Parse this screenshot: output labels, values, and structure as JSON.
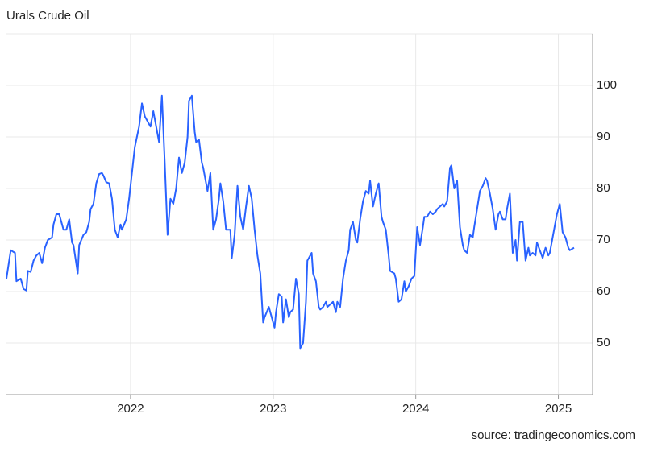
{
  "chart_data": {
    "type": "line",
    "title": "Urals Crude Oil",
    "source": "source: tradingeconomics.com",
    "xlim": [
      2021.13,
      2025.24
    ],
    "xticks": [
      2022,
      2023,
      2024,
      2025
    ],
    "ylim": [
      40,
      110
    ],
    "yticks": [
      50,
      60,
      70,
      80,
      90,
      100
    ],
    "grid": true,
    "series": [
      {
        "name": "Urals Crude Oil",
        "color": "#2962ff",
        "x": [
          2021.13,
          2021.16,
          2021.19,
          2021.2,
          2021.23,
          2021.25,
          2021.27,
          2021.28,
          2021.3,
          2021.32,
          2021.34,
          2021.36,
          2021.38,
          2021.4,
          2021.42,
          2021.45,
          2021.46,
          2021.48,
          2021.5,
          2021.53,
          2021.55,
          2021.57,
          2021.59,
          2021.6,
          2021.63,
          2021.64,
          2021.67,
          2021.69,
          2021.71,
          2021.72,
          2021.74,
          2021.76,
          2021.78,
          2021.8,
          2021.81,
          2021.83,
          2021.85,
          2021.87,
          2021.89,
          2021.91,
          2021.93,
          2021.94,
          2021.97,
          2021.99,
          2022.01,
          2022.03,
          2022.06,
          2022.08,
          2022.1,
          2022.12,
          2022.14,
          2022.16,
          2022.18,
          2022.2,
          2022.22,
          2022.24,
          2022.26,
          2022.28,
          2022.3,
          2022.32,
          2022.34,
          2022.36,
          2022.38,
          2022.4,
          2022.41,
          2022.43,
          2022.45,
          2022.46,
          2022.48,
          2022.5,
          2022.51,
          2022.54,
          2022.56,
          2022.58,
          2022.6,
          2022.62,
          2022.63,
          2022.65,
          2022.67,
          2022.7,
          2022.71,
          2022.73,
          2022.75,
          2022.77,
          2022.79,
          2022.81,
          2022.83,
          2022.85,
          2022.87,
          2022.89,
          2022.91,
          2022.93,
          2022.94,
          2022.97,
          2022.98,
          2023.01,
          2023.02,
          2023.04,
          2023.06,
          2023.07,
          2023.09,
          2023.11,
          2023.12,
          2023.14,
          2023.16,
          2023.18,
          2023.19,
          2023.21,
          2023.23,
          2023.24,
          2023.27,
          2023.28,
          2023.3,
          2023.32,
          2023.33,
          2023.35,
          2023.37,
          2023.38,
          2023.4,
          2023.42,
          2023.44,
          2023.45,
          2023.47,
          2023.49,
          2023.51,
          2023.53,
          2023.54,
          2023.56,
          2023.58,
          2023.59,
          2023.61,
          2023.63,
          2023.65,
          2023.67,
          2023.68,
          2023.7,
          2023.72,
          2023.74,
          2023.76,
          2023.77,
          2023.79,
          2023.81,
          2023.82,
          2023.85,
          2023.86,
          2023.88,
          2023.9,
          2023.92,
          2023.93,
          2023.95,
          2023.97,
          2023.99,
          2024.01,
          2024.03,
          2024.05,
          2024.06,
          2024.08,
          2024.1,
          2024.12,
          2024.14,
          2024.15,
          2024.17,
          2024.19,
          2024.2,
          2024.22,
          2024.24,
          2024.25,
          2024.27,
          2024.29,
          2024.31,
          2024.33,
          2024.34,
          2024.36,
          2024.38,
          2024.4,
          2024.41,
          2024.43,
          2024.45,
          2024.47,
          2024.49,
          2024.5,
          2024.52,
          2024.54,
          2024.56,
          2024.58,
          2024.59,
          2024.61,
          2024.63,
          2024.64,
          2024.66,
          2024.68,
          2024.7,
          2024.71,
          2024.73,
          2024.75,
          2024.77,
          2024.79,
          2024.8,
          2024.82,
          2024.84,
          2024.85,
          2024.87,
          2024.89,
          2024.91,
          2024.93,
          2024.94,
          2024.96,
          2024.98,
          2024.99,
          2025.01,
          2025.03,
          2025.05,
          2025.07,
          2025.08,
          2025.11
        ],
        "values": [
          62.5,
          68,
          67.5,
          62,
          62.5,
          60.5,
          60.2,
          64,
          63.8,
          66,
          67,
          67.5,
          65.5,
          68.5,
          70,
          70.5,
          73,
          75,
          75,
          72,
          72,
          74,
          69.5,
          69,
          63.5,
          69,
          71,
          71.5,
          73.5,
          76,
          77,
          81,
          82.8,
          83,
          82.5,
          81.2,
          81,
          78,
          72,
          70.5,
          73,
          72,
          74,
          78,
          83,
          88,
          92,
          96.5,
          94,
          93,
          92,
          95,
          92,
          89,
          98,
          85,
          71,
          78,
          77,
          80,
          86,
          83,
          85,
          90,
          97,
          98,
          91,
          89,
          89.5,
          85,
          84,
          79.5,
          83,
          72,
          74,
          78,
          81,
          77.5,
          72,
          72,
          66.5,
          71,
          80.5,
          74.5,
          72,
          76.5,
          80.5,
          78,
          72,
          67,
          63.5,
          54,
          55,
          57,
          56,
          53,
          56,
          59.5,
          59,
          54,
          58.5,
          55,
          56,
          56.5,
          62.5,
          59.5,
          49,
          50,
          58,
          66,
          67.5,
          63.5,
          62,
          57,
          56.5,
          57,
          58,
          57,
          57.5,
          58,
          56,
          58,
          57,
          62.5,
          66,
          68,
          72,
          73.5,
          70,
          69.5,
          74,
          77.5,
          79.5,
          79,
          81.5,
          76.5,
          79,
          81,
          74.5,
          73.5,
          72,
          67,
          64,
          63.5,
          62.5,
          58,
          58.5,
          62,
          60,
          61,
          62.5,
          63,
          72.5,
          69,
          72.5,
          74.5,
          74.5,
          75.5,
          75,
          75.5,
          76,
          76.5,
          77,
          76.5,
          77.5,
          84,
          84.5,
          80,
          81.5,
          72.5,
          69,
          68,
          67.5,
          71,
          70.5,
          72.5,
          76,
          79.5,
          80.5,
          82,
          81.5,
          79,
          76,
          72,
          75,
          75.5,
          74,
          74,
          76,
          79,
          67.5,
          70,
          66,
          73.5,
          73.5,
          66,
          68.5,
          67,
          67.5,
          67,
          69.5,
          68,
          66.5,
          68.5,
          67,
          67.5,
          70.5,
          73.5,
          75,
          77,
          71.5,
          70.5,
          68.5,
          68,
          68.5
        ]
      }
    ]
  }
}
